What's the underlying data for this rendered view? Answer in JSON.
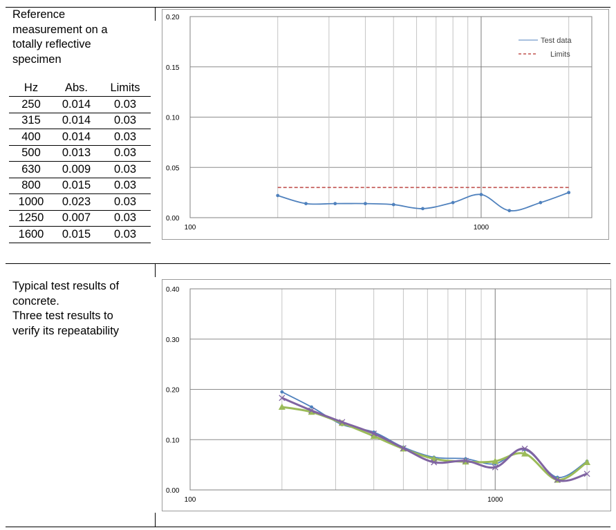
{
  "section1": {
    "description": "Reference\nmeasurement on a\ntotally reflective\nspecimen",
    "table": {
      "headers": [
        "Hz",
        "Abs.",
        "Limits"
      ],
      "rows": [
        [
          "250",
          "0.014",
          "0.03"
        ],
        [
          "315",
          "0.014",
          "0.03"
        ],
        [
          "400",
          "0.014",
          "0.03"
        ],
        [
          "500",
          "0.013",
          "0.03"
        ],
        [
          "630",
          "0.009",
          "0.03"
        ],
        [
          "800",
          "0.015",
          "0.03"
        ],
        [
          "1000",
          "0.023",
          "0.03"
        ],
        [
          "1250",
          "0.007",
          "0.03"
        ],
        [
          "1600",
          "0.015",
          "0.03"
        ]
      ]
    }
  },
  "section2": {
    "description": "Typical test results of\nconcrete.\nThree test results to\nverify its repeatability"
  },
  "chart_data": [
    {
      "type": "line",
      "x_scale": "log",
      "xlim": [
        100,
        2400
      ],
      "ylim": [
        0,
        0.2
      ],
      "x_ticks": [
        {
          "value": 100,
          "label": "100"
        },
        {
          "value": 1000,
          "label": "1000"
        }
      ],
      "y_ticks": [
        {
          "value": 0,
          "label": "0.00"
        },
        {
          "value": 0.05,
          "label": "0.05"
        },
        {
          "value": 0.1,
          "label": "0.10"
        },
        {
          "value": 0.15,
          "label": "0.15"
        },
        {
          "value": 0.2,
          "label": "0.20"
        }
      ],
      "gridlines_x": [
        200,
        300,
        400,
        500,
        600,
        700,
        800,
        900,
        1000,
        2000
      ],
      "legend_position": "top-right",
      "series": [
        {
          "name": "Test data",
          "color": "#4f81bd",
          "style": "line",
          "x": [
            200,
            250,
            315,
            400,
            500,
            630,
            800,
            1000,
            1250,
            1600,
            2000
          ],
          "y": [
            0.022,
            0.014,
            0.014,
            0.014,
            0.013,
            0.009,
            0.015,
            0.023,
            0.007,
            0.015,
            0.025
          ]
        },
        {
          "name": "Limits",
          "color": "#c0504d",
          "style": "dashed",
          "x": [
            200,
            2000
          ],
          "y": [
            0.03,
            0.03
          ]
        }
      ]
    },
    {
      "type": "line",
      "x_scale": "log",
      "xlim": [
        100,
        2400
      ],
      "ylim": [
        0,
        0.4
      ],
      "x_ticks": [
        {
          "value": 100,
          "label": "100"
        },
        {
          "value": 1000,
          "label": "1000"
        }
      ],
      "y_ticks": [
        {
          "value": 0,
          "label": "0.00"
        },
        {
          "value": 0.1,
          "label": "0.10"
        },
        {
          "value": 0.2,
          "label": "0.20"
        },
        {
          "value": 0.3,
          "label": "0.30"
        },
        {
          "value": 0.4,
          "label": "0.40"
        }
      ],
      "gridlines_x": [
        200,
        300,
        400,
        500,
        600,
        700,
        800,
        900,
        1000,
        2000
      ],
      "series": [
        {
          "color": "#4f81bd",
          "marker": "circle",
          "stroke": "thin",
          "x": [
            200,
            250,
            315,
            400,
            500,
            630,
            800,
            1000,
            1250,
            1600,
            2000
          ],
          "y": [
            0.195,
            0.165,
            0.13,
            0.115,
            0.085,
            0.065,
            0.062,
            0.052,
            0.08,
            0.025,
            0.057
          ]
        },
        {
          "color": "#9bbb59",
          "marker": "triangle",
          "stroke": "thick",
          "x": [
            200,
            250,
            315,
            400,
            500,
            630,
            800,
            1000,
            1250,
            1600,
            2000
          ],
          "y": [
            0.165,
            0.155,
            0.133,
            0.107,
            0.082,
            0.062,
            0.056,
            0.057,
            0.072,
            0.02,
            0.055
          ]
        },
        {
          "color": "#8064a2",
          "marker": "x",
          "stroke": "thick",
          "x": [
            200,
            250,
            315,
            400,
            500,
            630,
            800,
            1000,
            1250,
            1600,
            2000
          ],
          "y": [
            0.183,
            0.158,
            0.135,
            0.112,
            0.083,
            0.055,
            0.058,
            0.045,
            0.082,
            0.02,
            0.032
          ]
        }
      ]
    }
  ]
}
